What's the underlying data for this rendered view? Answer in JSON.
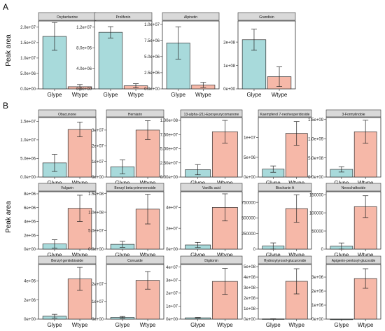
{
  "panel_labels": {
    "A": "A",
    "B": "B"
  },
  "y_axis_label": "Peak area",
  "colors": {
    "Glype": "#a8dadb",
    "Wtype": "#f6b8a8",
    "strip": "#d9d9d9",
    "border": "#333333",
    "error": "#222222"
  },
  "chart_data": [
    {
      "type": "bar",
      "title": "Oxyberberine",
      "categories": [
        "Glype",
        "Wtype"
      ],
      "values": [
        17000000,
        700000
      ],
      "errors": [
        4500000,
        700000
      ],
      "ylim": [
        0,
        22000000
      ],
      "yticks": [
        0,
        5000000,
        10000000,
        15000000,
        20000000
      ],
      "ytick_labels": [
        "0.0e+00",
        "5.0e+06",
        "1.0e+07",
        "1.5e+07",
        "2.0e+07"
      ]
    },
    {
      "type": "bar",
      "title": "Prolifenin",
      "categories": [
        "Glype",
        "Wtype"
      ],
      "values": [
        11000000,
        600000
      ],
      "errors": [
        1100000,
        400000
      ],
      "ylim": [
        0,
        13200000
      ],
      "yticks": [
        0,
        4000000,
        8000000,
        12000000
      ],
      "ytick_labels": [
        "0.0e+00",
        "4.0e+06",
        "8.0e+06",
        "1.2e+07"
      ]
    },
    {
      "type": "bar",
      "title": "Alpinetin",
      "categories": [
        "Glype",
        "Wtype"
      ],
      "values": [
        7100000,
        600000
      ],
      "errors": [
        2500000,
        400000
      ],
      "ylim": [
        0,
        10500000
      ],
      "yticks": [
        0,
        2500000,
        5000000,
        7500000,
        10000000
      ],
      "ytick_labels": [
        "0.0e+00",
        "2.5e+06",
        "5.0e+06",
        "7.5e+06",
        "1.0e+07"
      ]
    },
    {
      "type": "bar",
      "title": "Grandisin",
      "categories": [
        "Glype",
        "Wtype"
      ],
      "values": [
        210000000,
        52000000
      ],
      "errors": [
        45000000,
        42000000
      ],
      "ylim": [
        0,
        290000000
      ],
      "yticks": [
        0,
        100000000,
        200000000
      ],
      "ytick_labels": [
        "0e+00",
        "1e+08",
        "2e+08"
      ]
    },
    {
      "type": "bar",
      "title": "Obacunone",
      "categories": [
        "Glype",
        "Wtype"
      ],
      "values": [
        3800000,
        12800000
      ],
      "errors": [
        2300000,
        2000000
      ],
      "ylim": [
        0,
        16000000
      ],
      "yticks": [
        0,
        5000000,
        10000000,
        15000000
      ],
      "ytick_labels": [
        "0.0e+00",
        "5.0e+06",
        "1.0e+07",
        "1.5e+07"
      ]
    },
    {
      "type": "bar",
      "title": "Herniarin",
      "categories": [
        "Glype",
        "Wtype"
      ],
      "values": [
        6500000,
        30000000
      ],
      "errors": [
        4500000,
        6000000
      ],
      "ylim": [
        0,
        38000000
      ],
      "yticks": [
        0,
        10000000,
        20000000,
        30000000
      ],
      "ytick_labels": [
        "0e+00",
        "1e+07",
        "2e+07",
        "3e+07"
      ]
    },
    {
      "type": "bar",
      "title": "13-alpha-(21)-Epoxyeurycomanone",
      "categories": [
        "Glype",
        "Wtype"
      ],
      "values": [
        13000000,
        80000000
      ],
      "errors": [
        9000000,
        20000000
      ],
      "ylim": [
        0,
        105000000
      ],
      "yticks": [
        0,
        25000000,
        50000000,
        75000000,
        100000000
      ],
      "ytick_labels": [
        "0.00e+00",
        "2.50e+07",
        "5.00e+07",
        "7.50e+07",
        "1.00e+08"
      ]
    },
    {
      "type": "bar",
      "title": "Kaempferol 7-neohesperidoside",
      "categories": [
        "Glype",
        "Wtype"
      ],
      "values": [
        2000000,
        11000000
      ],
      "errors": [
        800000,
        3000000
      ],
      "ylim": [
        0,
        15000000
      ],
      "yticks": [
        0,
        5000000,
        10000000
      ],
      "ytick_labels": [
        "0e+00",
        "5e+06",
        "1e+07"
      ]
    },
    {
      "type": "bar",
      "title": "3-Formylindole",
      "categories": [
        "Glype",
        "Wtype"
      ],
      "values": [
        200000000,
        1180000000
      ],
      "errors": [
        70000000,
        300000000
      ],
      "ylim": [
        0,
        1550000000
      ],
      "yticks": [
        0,
        500000000,
        1000000000,
        1500000000
      ],
      "ytick_labels": [
        "0.0e+00",
        "5.0e+08",
        "1.0e+09",
        "1.5e+09"
      ]
    },
    {
      "type": "bar",
      "title": "Vulgarin",
      "categories": [
        "Glype",
        "Wtype"
      ],
      "values": [
        750000,
        5900000
      ],
      "errors": [
        600000,
        1900000
      ],
      "ylim": [
        0,
        8300000
      ],
      "yticks": [
        0,
        2000000,
        4000000,
        6000000,
        8000000
      ],
      "ytick_labels": [
        "0e+00",
        "2e+06",
        "4e+06",
        "6e+06",
        "8e+06"
      ]
    },
    {
      "type": "bar",
      "title": "Benzyl beta-primeveroside",
      "categories": [
        "Glype",
        "Wtype"
      ],
      "values": [
        13000000,
        108000000
      ],
      "errors": [
        8000000,
        40000000
      ],
      "ylim": [
        0,
        155000000
      ],
      "yticks": [
        0,
        50000000,
        100000000,
        150000000
      ],
      "ytick_labels": [
        "0.0e+00",
        "5.0e+07",
        "1.0e+08",
        "1.5e+08"
      ]
    },
    {
      "type": "bar",
      "title": "Vanillic acid",
      "categories": [
        "Glype",
        "Wtype"
      ],
      "values": [
        4000000,
        40000000
      ],
      "errors": [
        2500000,
        13000000
      ],
      "ylim": [
        0,
        55000000
      ],
      "yticks": [
        0,
        20000000,
        40000000
      ],
      "ytick_labels": [
        "0e+00",
        "2e+07",
        "4e+07"
      ]
    },
    {
      "type": "bar",
      "title": "Biochanin A",
      "categories": [
        "Glype",
        "Wtype"
      ],
      "values": [
        50000,
        650000
      ],
      "errors": [
        50000,
        220000
      ],
      "ylim": [
        0,
        920000
      ],
      "yticks": [
        0,
        250000,
        500000,
        750000
      ],
      "ytick_labels": [
        "0",
        "250000",
        "500000",
        "750000"
      ]
    },
    {
      "type": "bar",
      "title": "Neoschaftoside",
      "categories": [
        "Glype",
        "Wtype"
      ],
      "values": [
        8000,
        117000
      ],
      "errors": [
        9000,
        30000
      ],
      "ylim": [
        0,
        158000
      ],
      "yticks": [
        0,
        50000,
        100000,
        150000
      ],
      "ytick_labels": [
        "0",
        "50000",
        "100000",
        "150000"
      ]
    },
    {
      "type": "bar",
      "title": "Benzyl gentiobioside",
      "categories": [
        "Glype",
        "Wtype"
      ],
      "values": [
        300000,
        4200000
      ],
      "errors": [
        200000,
        1200000
      ],
      "ylim": [
        0,
        5700000
      ],
      "yticks": [
        0,
        2000000,
        4000000
      ],
      "ytick_labels": [
        "0e+00",
        "2e+06",
        "4e+06"
      ]
    },
    {
      "type": "bar",
      "title": "Corruside",
      "categories": [
        "Glype",
        "Wtype"
      ],
      "values": [
        1000000,
        22000000
      ],
      "errors": [
        500000,
        5000000
      ],
      "ylim": [
        0,
        31000000
      ],
      "yticks": [
        0,
        10000000,
        20000000
      ],
      "ytick_labels": [
        "0e+00",
        "1e+07",
        "2e+07"
      ]
    },
    {
      "type": "bar",
      "title": "Digitonin",
      "categories": [
        "Glype",
        "Wtype"
      ],
      "values": [
        1000000,
        29000000
      ],
      "errors": [
        300000,
        10000000
      ],
      "ylim": [
        0,
        42000000
      ],
      "yticks": [
        0,
        10000000,
        20000000,
        30000000,
        40000000
      ],
      "ytick_labels": [
        "0e+00",
        "1e+07",
        "2e+07",
        "3e+07",
        "4e+07"
      ]
    },
    {
      "type": "bar",
      "title": "Hydroxytyrosol-glucuronide",
      "categories": [
        "Glype",
        "Wtype"
      ],
      "values": [
        2000000,
        360000000
      ],
      "errors": [
        1000000,
        120000000
      ],
      "ylim": [
        0,
        520000000
      ],
      "yticks": [
        0,
        100000000,
        200000000,
        300000000,
        400000000,
        500000000
      ],
      "ytick_labels": [
        "0e+00",
        "1e+08",
        "2e+08",
        "3e+08",
        "4e+08",
        "5e+08"
      ]
    },
    {
      "type": "bar",
      "title": "Apigenin-pentosyl-glucoside",
      "categories": [
        "Glype",
        "Wtype"
      ],
      "values": [
        0,
        2900000
      ],
      "errors": [
        0,
        700000
      ],
      "ylim": [
        0,
        3900000
      ],
      "yticks": [
        0,
        1000000,
        2000000,
        3000000
      ],
      "ytick_labels": [
        "0e+00",
        "1e+06",
        "2e+06",
        "3e+06"
      ]
    }
  ]
}
